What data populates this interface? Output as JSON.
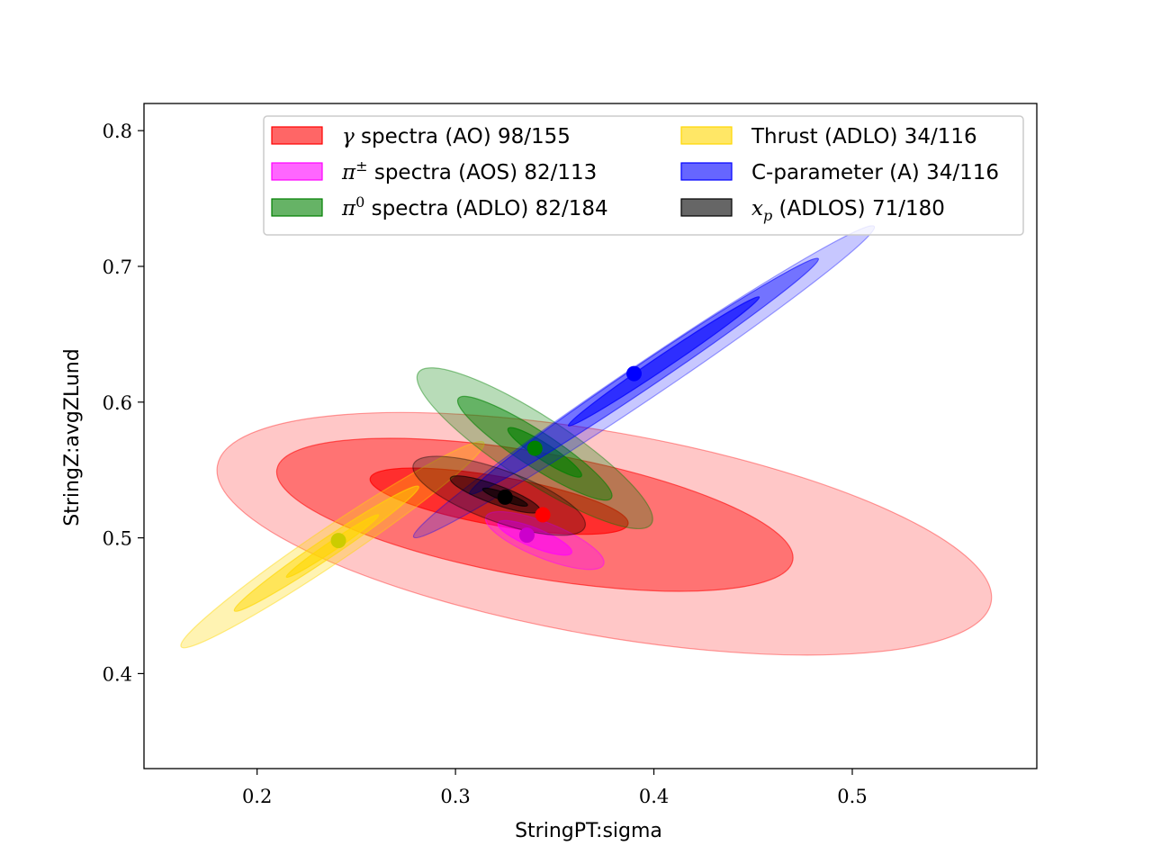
{
  "chart_data": {
    "type": "scatter",
    "subtype": "confidence-contours",
    "title": "",
    "xlabel": "StringPT:sigma",
    "ylabel": "StringZ:avgZLund",
    "xlim": [
      0.143,
      0.593
    ],
    "ylim": [
      0.33,
      0.82
    ],
    "xticks": [
      0.2,
      0.3,
      0.4,
      0.5
    ],
    "xtick_labels": [
      "0.2",
      "0.3",
      "0.4",
      "0.5"
    ],
    "yticks": [
      0.4,
      0.5,
      0.6,
      0.7,
      0.8
    ],
    "ytick_labels": [
      "0.4",
      "0.5",
      "0.6",
      "0.7",
      "0.8"
    ],
    "grid": false,
    "legend_position": "top-right",
    "series": [
      {
        "key": "gamma",
        "name": "γ spectra (AO) 98/155",
        "math": "γ",
        "text": " spectra (AO) 98/155",
        "color": "#ff0000",
        "best_fit": [
          0.344,
          0.517
        ],
        "angle_deg": -10,
        "contours": [
          {
            "center": [
              0.375,
              0.503
            ],
            "semi": [
              0.198,
              0.075
            ],
            "alpha": 0.22
          },
          {
            "center": [
              0.34,
              0.517
            ],
            "semi": [
              0.132,
              0.046
            ],
            "alpha": 0.42
          },
          {
            "center": [
              0.322,
              0.527
            ],
            "semi": [
              0.066,
              0.018
            ],
            "alpha": 0.6
          }
        ]
      },
      {
        "key": "pipm",
        "name": "π± spectra (AOS) 82/113",
        "math": "π",
        "sup": "±",
        "text": " spectra (AOS) 82/113",
        "color": "#ff00ff",
        "best_fit": [
          0.336,
          0.502
        ],
        "angle_deg": -22,
        "contours": [
          {
            "center": [
              0.345,
              0.498
            ],
            "semi": [
              0.032,
              0.013
            ],
            "alpha": 0.35
          },
          {
            "center": [
              0.34,
              0.5
            ],
            "semi": [
              0.02,
              0.007
            ],
            "alpha": 0.55
          }
        ]
      },
      {
        "key": "pi0",
        "name": "π0 spectra (ADLO) 82/184",
        "math": "π",
        "sup": "0",
        "text": " spectra (ADLO) 82/184",
        "color": "#008000",
        "best_fit": [
          0.34,
          0.566
        ],
        "angle_deg": -33,
        "contours": [
          {
            "center": [
              0.34,
              0.566
            ],
            "semi": [
              0.07,
              0.024
            ],
            "alpha": 0.28
          },
          {
            "center": [
              0.34,
              0.566
            ],
            "semi": [
              0.046,
              0.013
            ],
            "alpha": 0.45
          },
          {
            "center": [
              0.345,
              0.563
            ],
            "semi": [
              0.022,
              0.006
            ],
            "alpha": 0.6
          }
        ]
      },
      {
        "key": "thrust",
        "name": "Thrust (ADLO) 34/116",
        "math": "",
        "text": "Thrust (ADLO) 34/116",
        "color": "#ffd700",
        "best_fit": [
          0.241,
          0.498
        ],
        "angle_deg": 34,
        "contours": [
          {
            "center": [
              0.238,
              0.495
            ],
            "semi": [
              0.092,
              0.013
            ],
            "alpha": 0.3
          },
          {
            "center": [
              0.235,
              0.492
            ],
            "semi": [
              0.056,
              0.007
            ],
            "alpha": 0.5
          },
          {
            "center": [
              0.238,
              0.494
            ],
            "semi": [
              0.028,
              0.0035
            ],
            "alpha": 0.6
          }
        ]
      },
      {
        "key": "cparam",
        "name": "C-parameter (A) 34/116",
        "math": "",
        "text": "C-parameter (A) 34/116",
        "color": "#0000ff",
        "best_fit": [
          0.39,
          0.621
        ],
        "angle_deg": 34,
        "contours": [
          {
            "center": [
              0.395,
              0.615
            ],
            "semi": [
              0.14,
              0.013
            ],
            "alpha": 0.22
          },
          {
            "center": [
              0.395,
              0.619
            ],
            "semi": [
              0.106,
              0.009
            ],
            "alpha": 0.42
          },
          {
            "center": [
              0.405,
              0.63
            ],
            "semi": [
              0.058,
              0.005
            ],
            "alpha": 0.6
          }
        ]
      },
      {
        "key": "xp",
        "name": "xp (ADLOS) 71/180",
        "math": "x",
        "sub": "p",
        "text": " (ADLOS) 71/180",
        "color": "#000000",
        "best_fit": [
          0.325,
          0.53
        ],
        "angle_deg": -20,
        "contours": [
          {
            "center": [
              0.322,
              0.531
            ],
            "semi": [
              0.046,
              0.019
            ],
            "alpha": 0.25
          },
          {
            "center": [
              0.32,
              0.532
            ],
            "semi": [
              0.024,
              0.007
            ],
            "alpha": 0.45
          },
          {
            "center": [
              0.325,
              0.53
            ],
            "semi": [
              0.012,
              0.003
            ],
            "alpha": 0.6
          }
        ]
      }
    ]
  }
}
